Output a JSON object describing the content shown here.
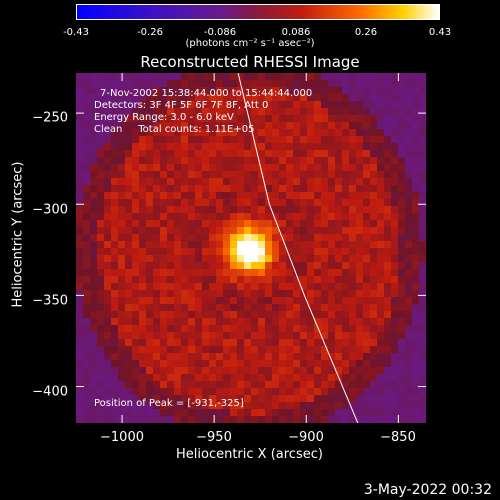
{
  "colorbar": {
    "ticks": [
      "-0.43",
      "-0.26",
      "-0.086",
      "0.086",
      "0.26",
      "0.43"
    ],
    "tick_values": [
      -0.43,
      -0.26,
      -0.086,
      0.086,
      0.26,
      0.43
    ],
    "units": "(photons cm⁻² s⁻¹ asec⁻²)",
    "min": -0.43,
    "max": 0.43
  },
  "info": {
    "time_range": "7-Nov-2002 15:38:44.000 to 15:44:44.000",
    "detectors": "Detectors: 3F 4F 5F 6F 7F 8F, Att 0",
    "energy": "Energy Range: 3.0 - 6.0 keV",
    "clean": "Clean     Total counts: 1.11E+05",
    "peak": "Position of Peak = [-931,-325]"
  },
  "timestamp": "3-May-2022 00:32",
  "chart_data": {
    "type": "heatmap",
    "title": "Reconstructed RHESSI Image",
    "xlabel": "Heliocentric X (arcsec)",
    "ylabel": "Heliocentric Y (arcsec)",
    "xlim": [
      -1025,
      -835
    ],
    "ylim": [
      -420,
      -228
    ],
    "x_ticks": [
      -1000,
      -950,
      -900,
      -850
    ],
    "y_ticks": [
      -400,
      -350,
      -300,
      -250
    ],
    "x_tick_labels": [
      "−1000",
      "−950",
      "−900",
      "−850"
    ],
    "y_tick_labels": [
      "−400",
      "−350",
      "−300",
      "−250"
    ],
    "colormap": "hot",
    "peak": {
      "x": -931,
      "y": -325,
      "value": 0.43
    },
    "diffuse_ring": {
      "center_x": -931,
      "center_y": -325,
      "radius_x": 82,
      "radius_y": 90,
      "level": 0.12
    },
    "limb": [
      [
        -937,
        -228
      ],
      [
        -920,
        -300
      ],
      [
        -901,
        -350
      ],
      [
        -872,
        -420
      ]
    ]
  }
}
